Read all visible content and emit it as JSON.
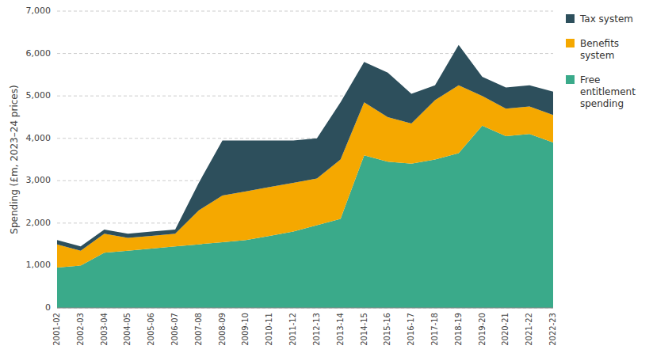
{
  "chart_data": {
    "type": "area",
    "stacked": true,
    "categories": [
      "2001-02",
      "2002-03",
      "2003-04",
      "2004-05",
      "2005-06",
      "2006-07",
      "2007-08",
      "2008-09",
      "2009-10",
      "2010-11",
      "2011-12",
      "2012-13",
      "2013-14",
      "2014-15",
      "2015-16",
      "2016-17",
      "2017-18",
      "2018-19",
      "2019-20",
      "2020-21",
      "2021-22",
      "2022-23"
    ],
    "series": [
      {
        "name": "Free\nentitlement\nspending",
        "color": "#3aaa8a",
        "values": [
          950,
          1000,
          1300,
          1350,
          1400,
          1450,
          1500,
          1550,
          1600,
          1700,
          1800,
          1950,
          2100,
          3600,
          3450,
          3400,
          3500,
          3650,
          4300,
          4050,
          4100,
          3900
        ]
      },
      {
        "name": "Benefits\nsystem",
        "color": "#f5a800",
        "values": [
          550,
          350,
          450,
          300,
          300,
          300,
          800,
          1100,
          1150,
          1150,
          1150,
          1100,
          1400,
          1250,
          1050,
          950,
          1400,
          1600,
          700,
          650,
          650,
          650
        ]
      },
      {
        "name": "Tax system",
        "color": "#2d4f5c",
        "values": [
          100,
          100,
          100,
          100,
          100,
          100,
          650,
          1300,
          1200,
          1100,
          1000,
          950,
          1350,
          950,
          1050,
          700,
          350,
          950,
          450,
          500,
          500,
          550
        ]
      }
    ],
    "y_label": "Spending (£m, 2023–24 prices)",
    "ylim": [
      0,
      7000
    ],
    "yticks": [
      0,
      {
        "value": 1000,
        "label": "1,000"
      },
      {
        "value": 2000,
        "label": "2,000"
      },
      {
        "value": 3000,
        "label": "3,000"
      },
      {
        "value": 4000,
        "label": "4,000"
      },
      {
        "value": 5000,
        "label": "5,000"
      },
      {
        "value": 6000,
        "label": "6,000"
      },
      {
        "value": 7000,
        "label": "7,000"
      }
    ],
    "grid": true,
    "legend": "right"
  }
}
